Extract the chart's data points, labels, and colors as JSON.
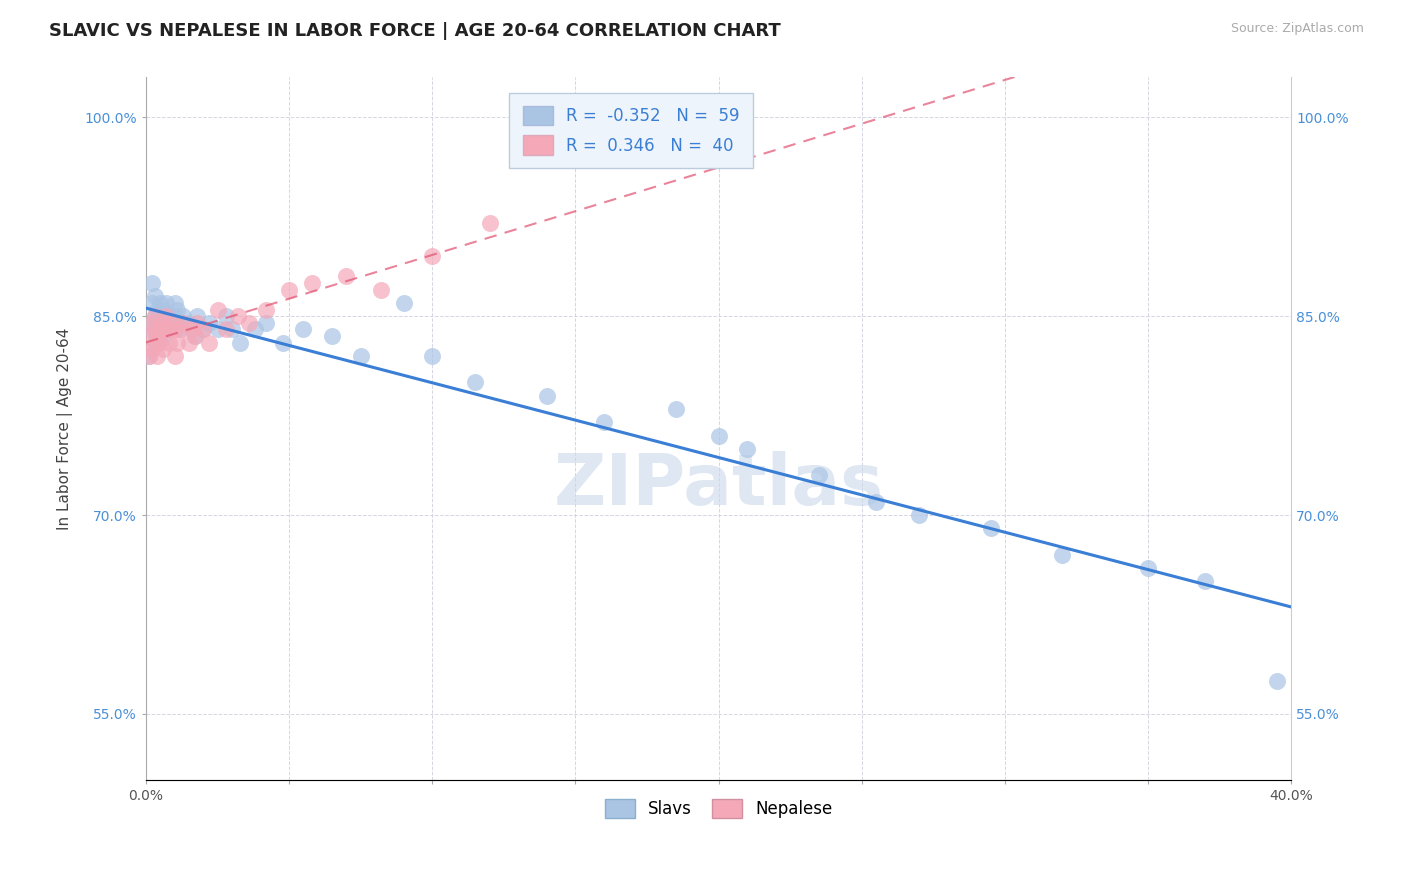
{
  "title": "SLAVIC VS NEPALESE IN LABOR FORCE | AGE 20-64 CORRELATION CHART",
  "source": "Source: ZipAtlas.com",
  "ylabel": "In Labor Force | Age 20-64",
  "xlim": [
    0.0,
    0.4
  ],
  "ylim": [
    0.5,
    1.03
  ],
  "yticks": [
    0.55,
    0.7,
    0.85,
    1.0
  ],
  "ytick_labels": [
    "55.0%",
    "70.0%",
    "85.0%",
    "100.0%"
  ],
  "slavic_color": "#aac4e4",
  "nepalese_color": "#f4a8b8",
  "slavic_line_color": "#3a7fd5",
  "nepalese_line_color": "#e05070",
  "nepalese_line_dashed": true,
  "R_slavic": -0.352,
  "N_slavic": 59,
  "R_nepalese": 0.346,
  "N_nepalese": 40,
  "slavic_x": [
    0.001,
    0.001,
    0.002,
    0.002,
    0.002,
    0.003,
    0.003,
    0.003,
    0.004,
    0.004,
    0.004,
    0.005,
    0.005,
    0.005,
    0.005,
    0.006,
    0.006,
    0.006,
    0.007,
    0.007,
    0.008,
    0.008,
    0.009,
    0.01,
    0.01,
    0.011,
    0.012,
    0.013,
    0.015,
    0.017,
    0.018,
    0.02,
    0.022,
    0.025,
    0.028,
    0.03,
    0.033,
    0.038,
    0.042,
    0.048,
    0.055,
    0.065,
    0.075,
    0.09,
    0.1,
    0.115,
    0.14,
    0.16,
    0.185,
    0.2,
    0.21,
    0.235,
    0.255,
    0.27,
    0.295,
    0.32,
    0.35,
    0.37,
    0.395
  ],
  "slavic_y": [
    0.84,
    0.82,
    0.86,
    0.875,
    0.845,
    0.83,
    0.85,
    0.865,
    0.84,
    0.855,
    0.83,
    0.845,
    0.84,
    0.86,
    0.85,
    0.835,
    0.845,
    0.855,
    0.85,
    0.86,
    0.85,
    0.84,
    0.845,
    0.85,
    0.86,
    0.855,
    0.84,
    0.85,
    0.845,
    0.835,
    0.85,
    0.84,
    0.845,
    0.84,
    0.85,
    0.84,
    0.83,
    0.84,
    0.845,
    0.83,
    0.84,
    0.835,
    0.82,
    0.86,
    0.82,
    0.8,
    0.79,
    0.77,
    0.78,
    0.76,
    0.75,
    0.73,
    0.71,
    0.7,
    0.69,
    0.67,
    0.66,
    0.65,
    0.575
  ],
  "nepalese_x": [
    0.001,
    0.001,
    0.002,
    0.002,
    0.003,
    0.003,
    0.003,
    0.004,
    0.004,
    0.005,
    0.005,
    0.006,
    0.006,
    0.007,
    0.007,
    0.008,
    0.008,
    0.009,
    0.01,
    0.01,
    0.011,
    0.012,
    0.013,
    0.015,
    0.016,
    0.017,
    0.018,
    0.02,
    0.022,
    0.025,
    0.028,
    0.032,
    0.036,
    0.042,
    0.05,
    0.058,
    0.07,
    0.082,
    0.1,
    0.12
  ],
  "nepalese_y": [
    0.835,
    0.82,
    0.845,
    0.825,
    0.85,
    0.83,
    0.84,
    0.82,
    0.835,
    0.84,
    0.83,
    0.845,
    0.825,
    0.84,
    0.85,
    0.84,
    0.83,
    0.845,
    0.84,
    0.82,
    0.83,
    0.84,
    0.845,
    0.83,
    0.84,
    0.835,
    0.845,
    0.84,
    0.83,
    0.855,
    0.84,
    0.85,
    0.845,
    0.855,
    0.87,
    0.875,
    0.88,
    0.87,
    0.895,
    0.92
  ],
  "background_color": "#ffffff",
  "grid_color": "#ccccdd",
  "watermark_text": "ZIPatlas",
  "watermark_color": "#c8d8ea",
  "title_fontsize": 13,
  "axis_label_fontsize": 11,
  "tick_fontsize": 10,
  "legend_fontsize": 12
}
